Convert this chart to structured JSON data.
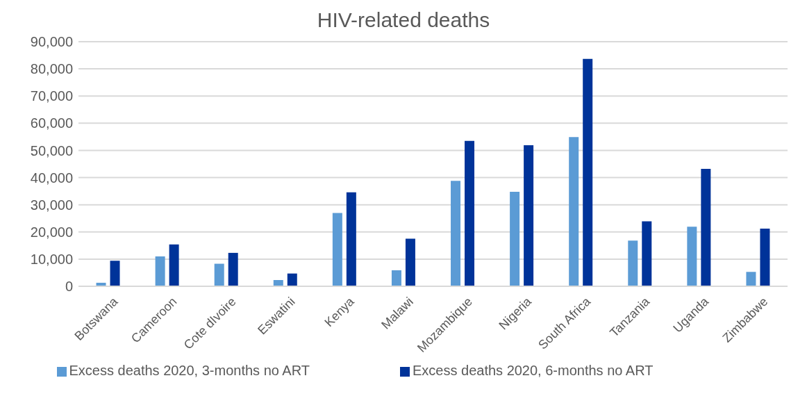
{
  "chart_data": {
    "type": "bar",
    "title": "HIV-related deaths",
    "categories": [
      "Botswana",
      "Cameroon",
      "Cote dIvoire",
      "Eswatini",
      "Kenya",
      "Malawi",
      "Mozambique",
      "Nigeria",
      "South Africa",
      "Tanzania",
      "Uganda",
      "Zimbabwe"
    ],
    "series": [
      {
        "name": "Excess deaths 2020, 3-months no ART",
        "color": "#5b9bd5",
        "values": [
          1300,
          11000,
          8300,
          2300,
          27000,
          5900,
          38800,
          34800,
          54900,
          16800,
          21900,
          5300
        ]
      },
      {
        "name": "Excess deaths 2020, 6-months no ART",
        "color": "#003399",
        "values": [
          9400,
          15400,
          12300,
          4700,
          34600,
          17500,
          53500,
          51900,
          83700,
          23900,
          43200,
          21200
        ]
      }
    ],
    "ylim": [
      0,
      90000
    ],
    "yticks": [
      0,
      {
        "value": 10000,
        "label": "10,000"
      },
      {
        "value": 20000,
        "label": "20,000"
      },
      {
        "value": 30000,
        "label": "30,000"
      },
      {
        "value": 40000,
        "label": "40,000"
      },
      {
        "value": 50000,
        "label": "50,000"
      },
      {
        "value": 60000,
        "label": "60,000"
      },
      {
        "value": 70000,
        "label": "70,000"
      },
      {
        "value": 80000,
        "label": "80,000"
      },
      {
        "value": 90000,
        "label": "90,000"
      }
    ],
    "grid": "y",
    "legend": "bottom"
  }
}
